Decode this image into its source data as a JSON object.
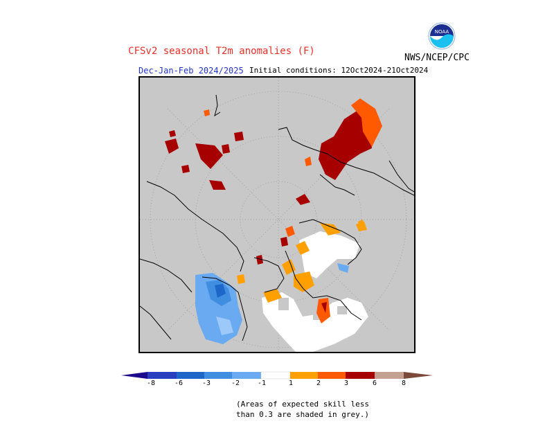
{
  "title": "CFSv2 seasonal T2m anomalies (F)",
  "period": "Dec-Jan-Feb 2024/2025",
  "initial_conditions": "Initial conditions: 12Oct2024-21Oct2024",
  "org": "NWS/NCEP/CPC",
  "logo_text": "NOAA",
  "colors": {
    "background_grey": "#c8c8c8",
    "coast": "#000000",
    "neg_extreme": "#1c0a8c",
    "neg_8": "#2a3fbf",
    "neg_6": "#1f66c9",
    "neg_3": "#3f8ee0",
    "neg_2": "#6aaaf0",
    "neg_1": "#9cc8fa",
    "neutral": "#ffffff",
    "pos_1": "#ffa000",
    "pos_2": "#ff5a00",
    "pos_3": "#e02000",
    "pos_6": "#a60000",
    "pos_8": "#c4a090",
    "pos_extreme": "#7a4a3a"
  },
  "colorbar": {
    "ticks": [
      "-8",
      "-6",
      "-3",
      "-2",
      "-1",
      "1",
      "2",
      "3",
      "6",
      "8"
    ]
  },
  "note_line1": "(Areas of expected skill less",
  "note_line2": "than 0.3 are shaded in grey.)"
}
